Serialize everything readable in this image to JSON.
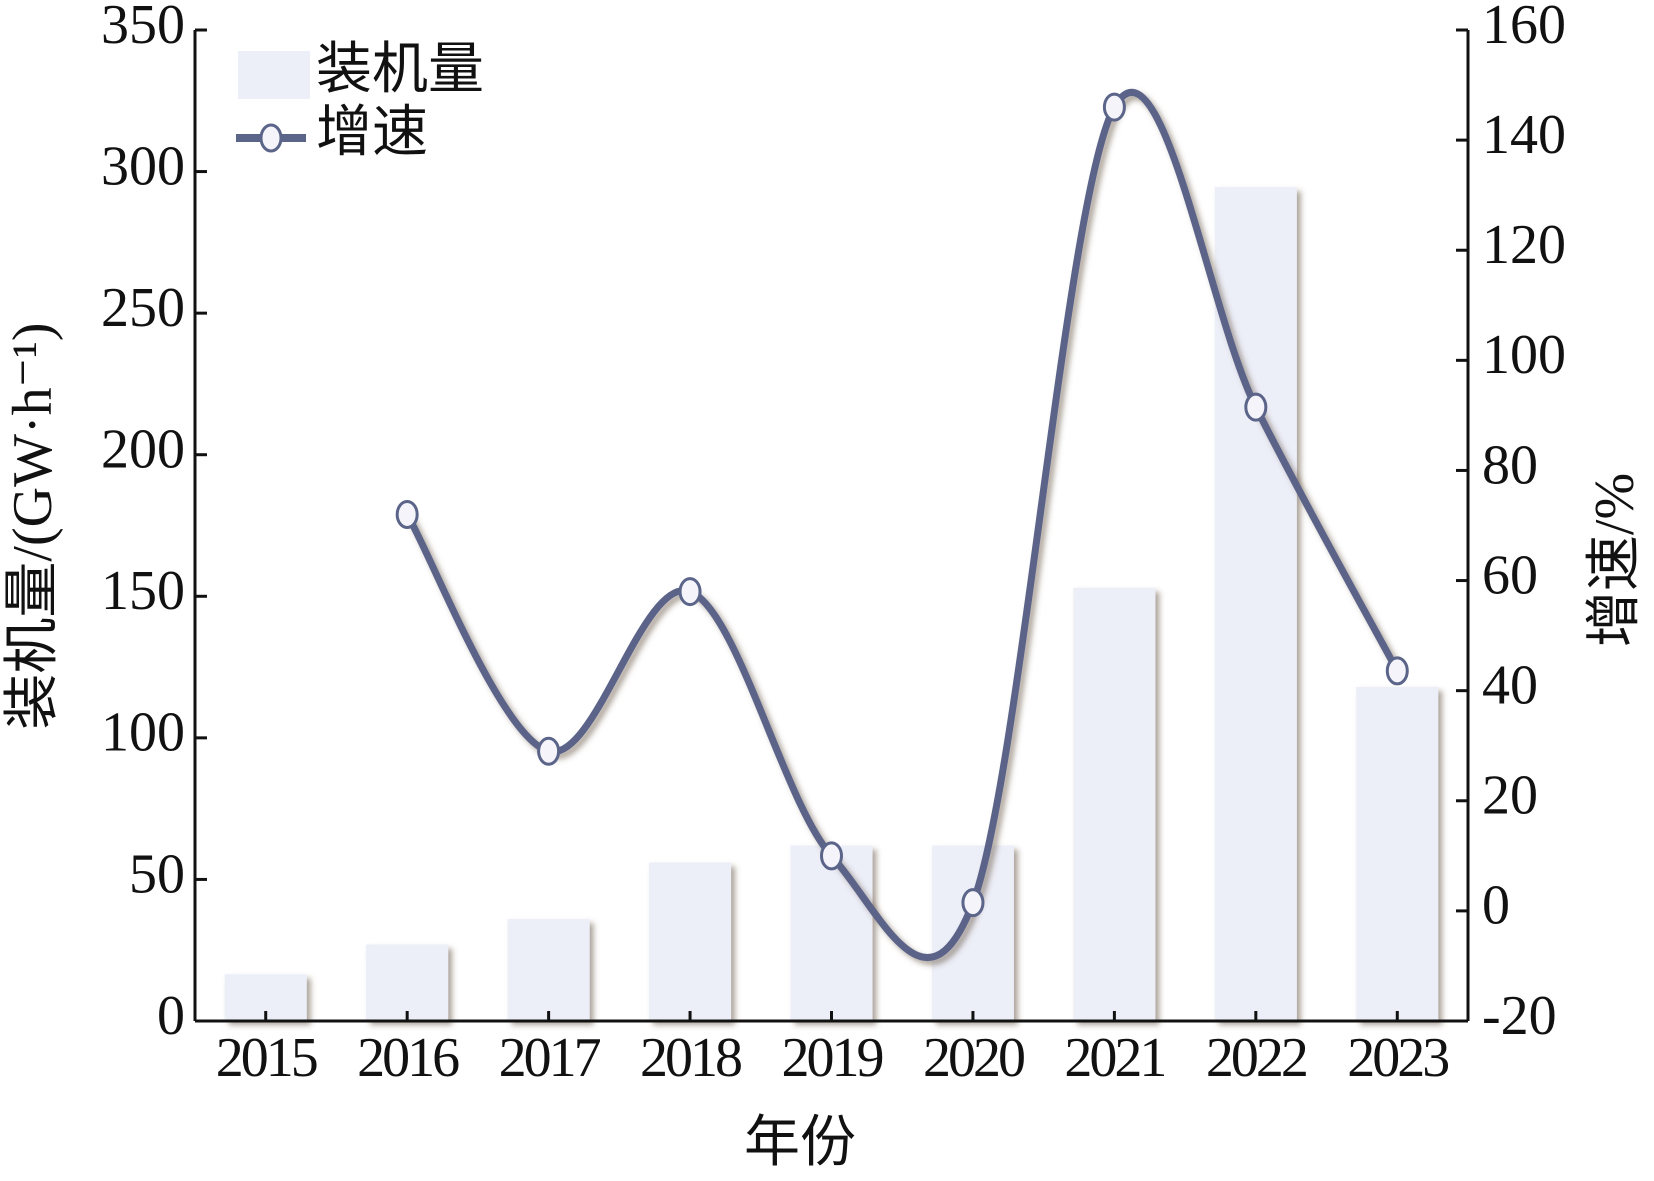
{
  "chart_data": {
    "type": "bar_line",
    "x_label": "年份",
    "y_label": "装机量/(GW·h⁻¹)",
    "y2_label": "增速/%",
    "categories": [
      "2015",
      "2016",
      "2017",
      "2018",
      "2019",
      "2020",
      "2021",
      "2022",
      "2023"
    ],
    "series": [
      {
        "name": "装机量",
        "type": "bar",
        "color": "#eceef8",
        "values": [
          16.5,
          27,
          36,
          56,
          62,
          62,
          153,
          294.5,
          118
        ]
      },
      {
        "name": "增速",
        "type": "line",
        "axis": "y2",
        "color": "#5b6489",
        "values": [
          null,
          72,
          29,
          58,
          10,
          1.5,
          146,
          91.5,
          43.6
        ]
      }
    ],
    "ylim": [
      0,
      350
    ],
    "yticks": [
      0,
      50,
      100,
      150,
      200,
      250,
      300,
      350
    ],
    "y2lim": [
      -20,
      160
    ],
    "y2ticks": [
      -20,
      0,
      20,
      40,
      60,
      80,
      100,
      120,
      140,
      160
    ],
    "legend": "upper left"
  }
}
